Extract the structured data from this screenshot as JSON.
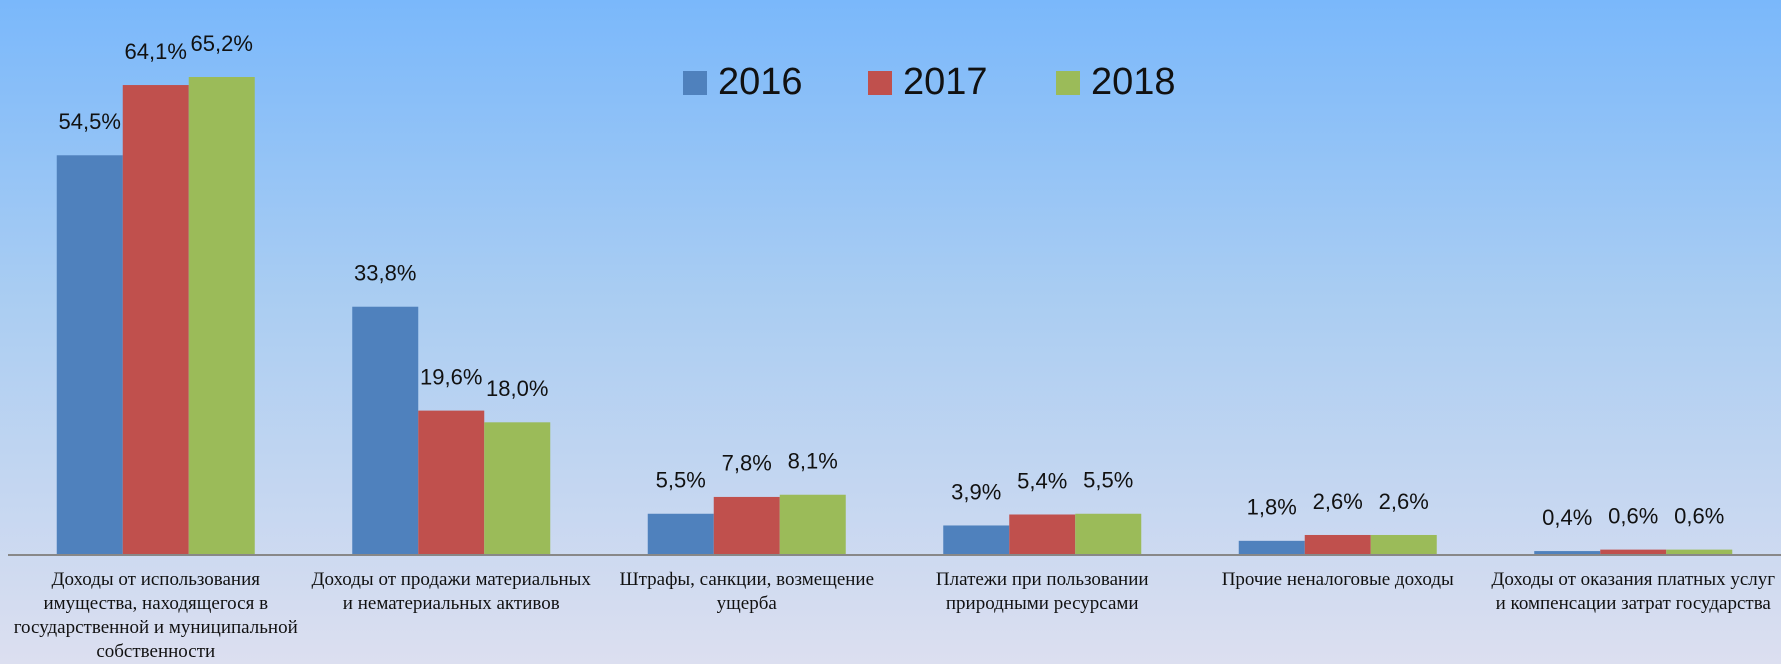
{
  "chart_data": {
    "type": "bar",
    "categories": [
      "Доходы от использования имущества, находящегося в государственной и муниципальной собственности",
      "Доходы от продажи материальных и нематериальных активов",
      "Штрафы, санкции, возмещение ущерба",
      "Платежи при пользовании природными ресурсами",
      "Прочие неналоговые доходы",
      "Доходы от оказания платных услуг и компенсации затрат государства"
    ],
    "series": [
      {
        "name": "2016",
        "color": "#4f81bd",
        "values": [
          54.5,
          33.8,
          5.5,
          3.9,
          1.8,
          0.4
        ],
        "value_labels": [
          "54,5%",
          "33,8%",
          "5,5%",
          "3,9%",
          "1,8%",
          "0,4%"
        ]
      },
      {
        "name": "2017",
        "color": "#c0504d",
        "values": [
          64.1,
          19.6,
          7.8,
          5.4,
          2.6,
          0.6
        ],
        "value_labels": [
          "64,1%",
          "19,6%",
          "7,8%",
          "5,4%",
          "2,6%",
          "0,6%"
        ]
      },
      {
        "name": "2018",
        "color": "#9bbb59",
        "values": [
          65.2,
          18.0,
          8.1,
          5.5,
          2.6,
          0.6
        ],
        "value_labels": [
          "65,2%",
          "18,0%",
          "8,1%",
          "5,5%",
          "2,6%",
          "0,6%"
        ]
      }
    ],
    "legend": "top"
  }
}
